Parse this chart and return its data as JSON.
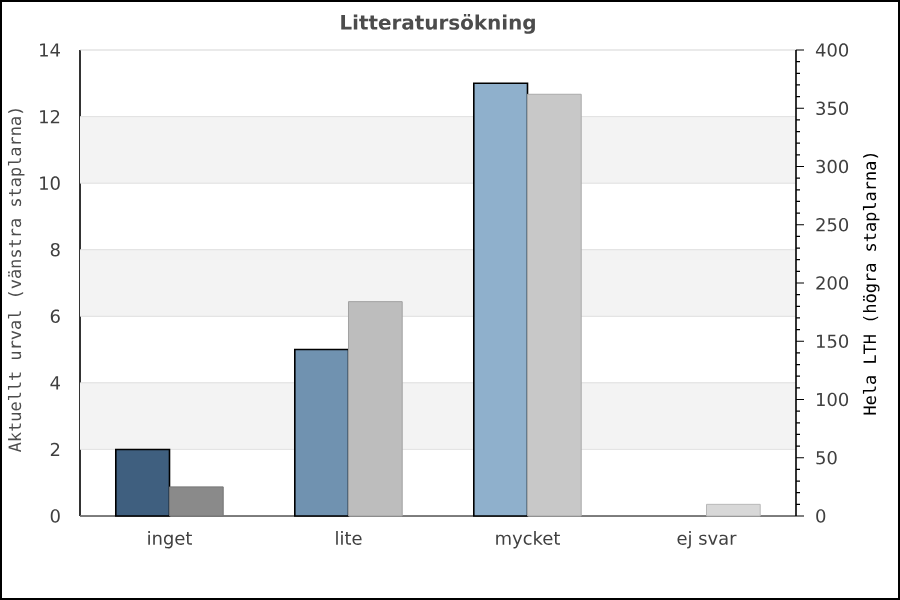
{
  "chart_data": {
    "type": "bar",
    "title": "Litteratursökning",
    "ylabel": "Aktuellt urval (vänstra staplarna)",
    "y2label": "Hela LTH (högra staplarna)",
    "categories": [
      "inget",
      "lite",
      "mycket",
      "ej svar"
    ],
    "series": [
      {
        "colors": [
          "#3f5f7f",
          "#7092b0",
          "#8fb0cc",
          "#a8c4dc"
        ],
        "values": [
          2,
          5,
          13,
          0
        ]
      },
      {
        "colors": [
          "#8a8a8a",
          "#bdbdbd",
          "#c8c8c8",
          "#d8d8d8"
        ],
        "values": [
          25,
          184,
          362,
          10
        ],
        "axis": "y2"
      }
    ],
    "ylim": [
      0,
      14
    ],
    "yticks": [
      0,
      2,
      4,
      6,
      8,
      10,
      12,
      14
    ],
    "y2lim": [
      0,
      400
    ],
    "y2ticks": [
      0,
      50,
      100,
      150,
      200,
      250,
      300,
      350,
      400
    ],
    "bands": [
      {
        "axis": "y",
        "from": 2,
        "to": 4,
        "color": "#f3f3f3"
      },
      {
        "axis": "y",
        "from": 6,
        "to": 8,
        "color": "#f3f3f3"
      },
      {
        "axis": "y",
        "from": 10,
        "to": 12,
        "color": "#f3f3f3"
      }
    ],
    "grid": "y"
  }
}
